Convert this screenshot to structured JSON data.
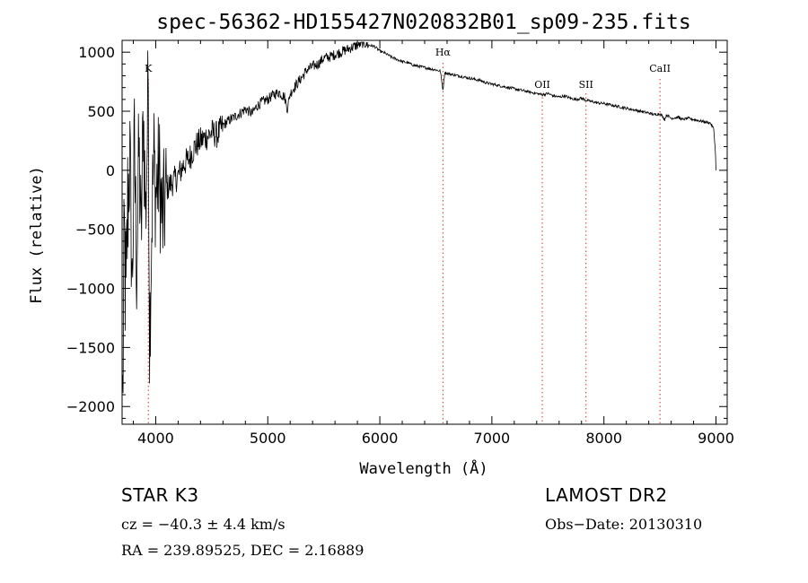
{
  "chart_data": {
    "type": "line",
    "title": "spec-56362-HD155427N020832B01_sp09-235.fits",
    "xlabel": "Wavelength (Å)",
    "ylabel": "Flux (relative)",
    "xlim": [
      3700,
      9100
    ],
    "ylim": [
      -2150,
      1100
    ],
    "x_ticks": [
      4000,
      5000,
      6000,
      7000,
      8000,
      9000
    ],
    "y_ticks": [
      -2000,
      -1500,
      -1000,
      -500,
      0,
      500,
      1000
    ],
    "x_tick_labels": [
      "4000",
      "5000",
      "6000",
      "7000",
      "8000",
      "9000"
    ],
    "y_tick_labels": [
      "−2000",
      "−1500",
      "−1000",
      "−500",
      "0",
      "500",
      "1000"
    ],
    "lines": [
      {
        "label": "K",
        "x": 3934
      },
      {
        "label": "Hα",
        "x": 6563
      },
      {
        "label": "OII",
        "x": 7450
      },
      {
        "label": "SII",
        "x": 7840
      },
      {
        "label": "CaII",
        "x": 8500
      }
    ],
    "series": [
      {
        "name": "flux",
        "x": [
          3705,
          3720,
          3735,
          3750,
          3770,
          3790,
          3810,
          3830,
          3850,
          3870,
          3890,
          3910,
          3925,
          3934,
          3945,
          3968,
          3985,
          4000,
          4030,
          4060,
          4100,
          4150,
          4200,
          4250,
          4300,
          4350,
          4400,
          4450,
          4500,
          4550,
          4600,
          4650,
          4700,
          4750,
          4800,
          4861,
          4900,
          4950,
          5000,
          5050,
          5100,
          5150,
          5175,
          5200,
          5250,
          5300,
          5350,
          5400,
          5450,
          5500,
          5550,
          5600,
          5650,
          5700,
          5750,
          5800,
          5850,
          5900,
          5950,
          6000,
          6050,
          6100,
          6150,
          6200,
          6250,
          6300,
          6350,
          6400,
          6450,
          6500,
          6540,
          6563,
          6580,
          6600,
          6650,
          6700,
          6750,
          6800,
          6850,
          6900,
          6950,
          7000,
          7050,
          7100,
          7150,
          7200,
          7250,
          7300,
          7350,
          7400,
          7450,
          7500,
          7550,
          7600,
          7650,
          7700,
          7750,
          7800,
          7850,
          7900,
          7950,
          8000,
          8050,
          8100,
          8150,
          8200,
          8250,
          8300,
          8350,
          8400,
          8450,
          8498,
          8520,
          8542,
          8560,
          8600,
          8662,
          8700,
          8750,
          8800,
          8850,
          8900,
          8950,
          8980,
          8995,
          9000
        ],
        "y": [
          -1950,
          -600,
          -1200,
          -300,
          100,
          -1000,
          200,
          -800,
          150,
          -600,
          500,
          -400,
          300,
          750,
          -1400,
          -300,
          100,
          -200,
          0,
          -450,
          -150,
          -100,
          -50,
          50,
          100,
          200,
          250,
          280,
          320,
          300,
          380,
          420,
          450,
          480,
          520,
          480,
          540,
          580,
          600,
          640,
          660,
          620,
          520,
          650,
          720,
          780,
          850,
          880,
          900,
          950,
          960,
          980,
          1000,
          1020,
          1040,
          1060,
          1080,
          1060,
          1050,
          1010,
          990,
          960,
          940,
          920,
          910,
          890,
          880,
          870,
          860,
          850,
          840,
          680,
          830,
          820,
          810,
          800,
          790,
          780,
          770,
          760,
          740,
          730,
          720,
          710,
          700,
          690,
          680,
          670,
          660,
          650,
          640,
          650,
          630,
          620,
          630,
          610,
          600,
          610,
          590,
          580,
          570,
          565,
          555,
          545,
          535,
          525,
          515,
          505,
          495,
          485,
          470,
          480,
          460,
          430,
          470,
          440,
          450,
          430,
          440,
          430,
          420,
          410,
          400,
          350,
          150,
          0
        ]
      }
    ]
  },
  "footer": {
    "object": "STAR    K3",
    "cz": "cz = −40.3 ± 4.4 km/s",
    "radec": "RA = 239.89525, DEC =   2.16889",
    "survey": "LAMOST DR2",
    "obs_date": "Obs−Date: 20130310"
  }
}
